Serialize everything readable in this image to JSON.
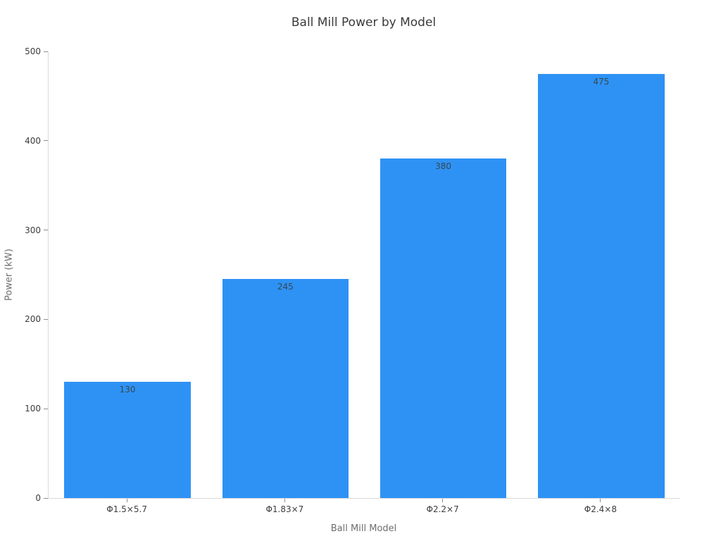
{
  "chart_data": {
    "type": "bar",
    "title": "Ball Mill Power by Model",
    "xlabel": "Ball Mill Model",
    "ylabel": "Power (kW)",
    "categories": [
      "Φ1.5×5.7",
      "Φ1.83×7",
      "Φ2.2×7",
      "Φ2.4×8"
    ],
    "values": [
      130,
      245,
      380,
      475
    ],
    "value_labels": [
      "130",
      "245",
      "380",
      "475"
    ],
    "ylim": [
      0,
      500
    ],
    "yticks": [
      0,
      100,
      200,
      300,
      400,
      500
    ],
    "bar_width_fraction": 0.8,
    "grid": false,
    "legend": false
  },
  "colors": {
    "bar": "#2e92f5",
    "title_text": "#3a3a3a",
    "tick_text": "#3c3c3c",
    "axis_label_text": "#6e6e6e",
    "bar_label_text": "#37474f",
    "axis_line": "#d9d9d9",
    "tick_mark": "#8c8c8c",
    "background": "#ffffff"
  }
}
